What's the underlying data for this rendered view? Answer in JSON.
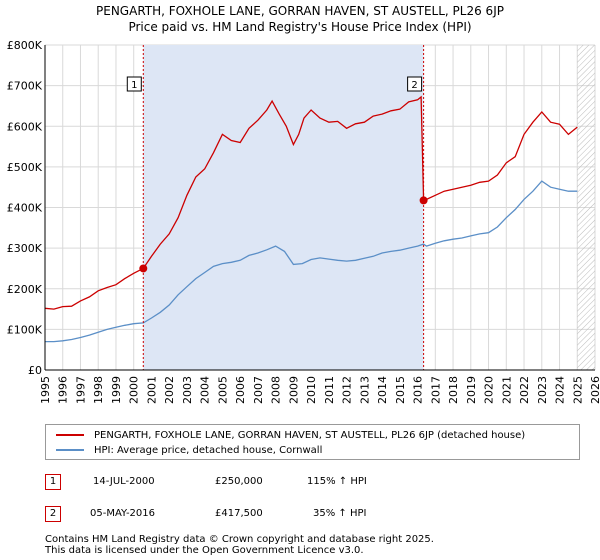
{
  "title": {
    "line1": "PENGARTH, FOXHOLE LANE, GORRAN HAVEN, ST AUSTELL, PL26 6JP",
    "line2": "Price paid vs. HM Land Registry's House Price Index (HPI)"
  },
  "colors": {
    "price": "#cc0000",
    "hpi": "#5b8fc7",
    "shade": "#dde6f5",
    "grid": "#d9d9d9",
    "marker_line": "#cc0000"
  },
  "chart_data": {
    "type": "line",
    "title": "Price paid vs. HM Land Registry's House Price Index (HPI)",
    "xlabel": "",
    "ylabel": "",
    "xlim": [
      1995,
      2026
    ],
    "ylim": [
      0,
      800000
    ],
    "y_ticks": [
      0,
      100000,
      200000,
      300000,
      400000,
      500000,
      600000,
      700000,
      800000
    ],
    "y_tick_labels": [
      "£0",
      "£100K",
      "£200K",
      "£300K",
      "£400K",
      "£500K",
      "£600K",
      "£700K",
      "£800K"
    ],
    "x_ticks": [
      "1995",
      "1996",
      "1997",
      "1998",
      "1999",
      "2000",
      "2001",
      "2002",
      "2003",
      "2004",
      "2005",
      "2006",
      "2007",
      "2008",
      "2009",
      "2010",
      "2011",
      "2012",
      "2013",
      "2014",
      "2015",
      "2016",
      "2017",
      "2018",
      "2019",
      "2020",
      "2021",
      "2022",
      "2023",
      "2024",
      "2025",
      "2026"
    ],
    "shaded_period": [
      2000.54,
      2016.34
    ],
    "future_hatch_from": 2025.0,
    "series": [
      {
        "name": "PENGARTH, FOXHOLE LANE, GORRAN HAVEN, ST AUSTELL, PL26 6JP (detached house)",
        "x": [
          1995.0,
          1995.5,
          1996.0,
          1996.5,
          1997.0,
          1997.5,
          1998.0,
          1998.5,
          1999.0,
          1999.5,
          2000.0,
          2000.54,
          2001.0,
          2001.5,
          2002.0,
          2002.5,
          2003.0,
          2003.5,
          2004.0,
          2004.5,
          2005.0,
          2005.5,
          2006.0,
          2006.5,
          2007.0,
          2007.5,
          2007.8,
          2008.2,
          2008.6,
          2009.0,
          2009.3,
          2009.6,
          2010.0,
          2010.5,
          2011.0,
          2011.5,
          2012.0,
          2012.5,
          2013.0,
          2013.5,
          2014.0,
          2014.5,
          2015.0,
          2015.5,
          2016.0,
          2016.2,
          2016.34,
          2016.5,
          2017.0,
          2017.5,
          2018.0,
          2018.5,
          2019.0,
          2019.5,
          2020.0,
          2020.5,
          2021.0,
          2021.5,
          2022.0,
          2022.5,
          2023.0,
          2023.5,
          2024.0,
          2024.5,
          2025.0
        ],
        "values": [
          152000,
          150000,
          156000,
          157000,
          170000,
          180000,
          195000,
          203000,
          210000,
          225000,
          238000,
          250000,
          280000,
          310000,
          335000,
          375000,
          430000,
          475000,
          495000,
          535000,
          580000,
          565000,
          560000,
          595000,
          615000,
          640000,
          662000,
          630000,
          600000,
          555000,
          580000,
          620000,
          640000,
          620000,
          610000,
          612000,
          595000,
          606000,
          610000,
          625000,
          630000,
          638000,
          642000,
          660000,
          665000,
          672000,
          417500,
          420000,
          430000,
          440000,
          445000,
          450000,
          455000,
          462000,
          465000,
          480000,
          510000,
          525000,
          580000,
          610000,
          635000,
          610000,
          605000,
          580000,
          598000
        ]
      },
      {
        "name": "HPI: Average price, detached house, Cornwall",
        "x": [
          1995.0,
          1995.5,
          1996.0,
          1996.5,
          1997.0,
          1997.5,
          1998.0,
          1998.5,
          1999.0,
          1999.5,
          2000.0,
          2000.54,
          2001.0,
          2001.5,
          2002.0,
          2002.5,
          2003.0,
          2003.5,
          2004.0,
          2004.5,
          2005.0,
          2005.5,
          2006.0,
          2006.5,
          2007.0,
          2007.5,
          2008.0,
          2008.5,
          2009.0,
          2009.5,
          2010.0,
          2010.5,
          2011.0,
          2011.5,
          2012.0,
          2012.5,
          2013.0,
          2013.5,
          2014.0,
          2014.5,
          2015.0,
          2015.5,
          2016.0,
          2016.34,
          2016.5,
          2017.0,
          2017.5,
          2018.0,
          2018.5,
          2019.0,
          2019.5,
          2020.0,
          2020.5,
          2021.0,
          2021.5,
          2022.0,
          2022.5,
          2023.0,
          2023.5,
          2024.0,
          2024.5,
          2025.0
        ],
        "values": [
          70000,
          70000,
          72000,
          75000,
          80000,
          86000,
          93000,
          100000,
          105000,
          110000,
          114000,
          116000,
          128000,
          142000,
          160000,
          185000,
          205000,
          225000,
          240000,
          255000,
          262000,
          265000,
          270000,
          282000,
          288000,
          296000,
          305000,
          292000,
          260000,
          262000,
          272000,
          276000,
          273000,
          270000,
          268000,
          270000,
          275000,
          280000,
          288000,
          292000,
          295000,
          300000,
          305000,
          310000,
          305000,
          312000,
          318000,
          322000,
          325000,
          330000,
          335000,
          338000,
          352000,
          375000,
          395000,
          420000,
          440000,
          465000,
          450000,
          445000,
          440000,
          440000
        ]
      }
    ],
    "annotations": [
      {
        "label": "1",
        "x": 2000.54,
        "value": 250000
      },
      {
        "label": "2",
        "x": 2016.34,
        "value": 417500
      }
    ]
  },
  "legend": {
    "price_label": "PENGARTH, FOXHOLE LANE, GORRAN HAVEN, ST AUSTELL, PL26 6JP (detached house)",
    "hpi_label": "HPI: Average price, detached house, Cornwall"
  },
  "sales": [
    {
      "num": "1",
      "date": "14-JUL-2000",
      "price": "£250,000",
      "hpi": "115% ↑ HPI"
    },
    {
      "num": "2",
      "date": "05-MAY-2016",
      "price": "£417,500",
      "hpi": "35% ↑ HPI"
    }
  ],
  "footer": {
    "line1": "Contains HM Land Registry data © Crown copyright and database right 2025.",
    "line2": "This data is licensed under the Open Government Licence v3.0."
  }
}
